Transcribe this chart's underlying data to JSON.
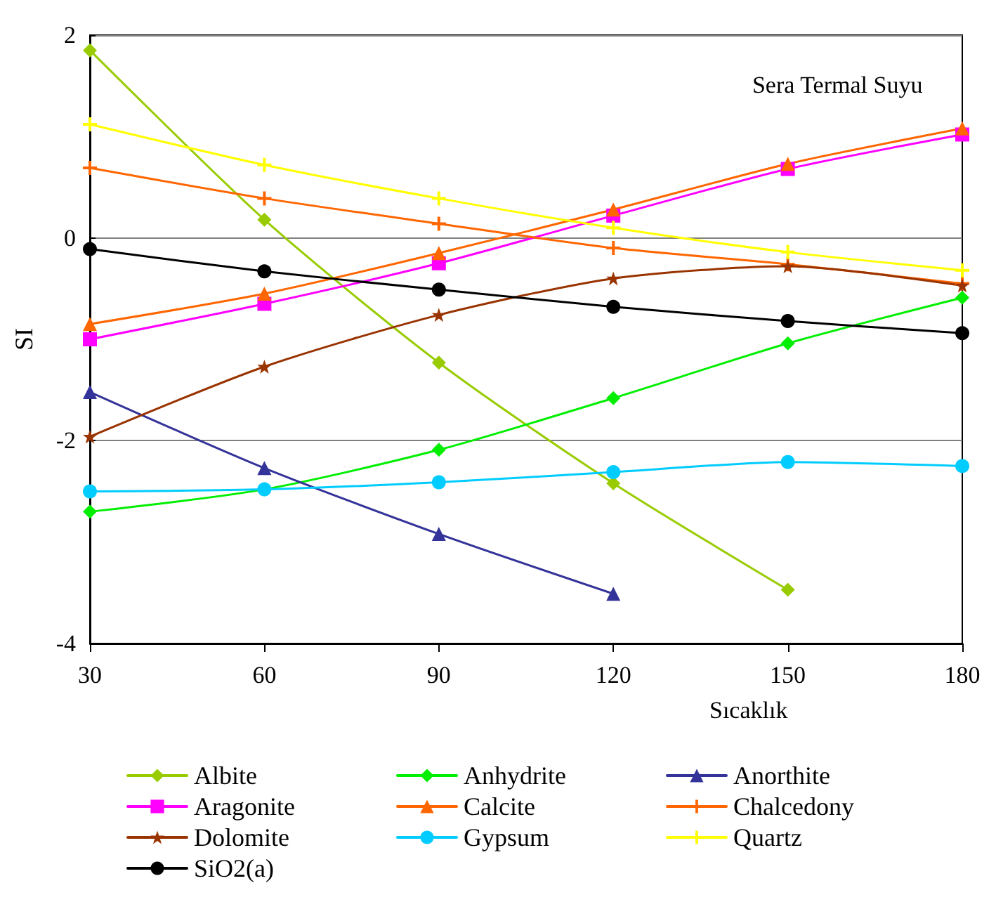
{
  "chart_data": {
    "type": "line",
    "xlabel": "Sıcaklık",
    "ylabel": "SI",
    "annotations": [
      "Sera Termal Suyu"
    ],
    "x": [
      30,
      60,
      90,
      120,
      150,
      180
    ],
    "xlim": [
      30,
      180
    ],
    "xticks": [
      30,
      60,
      90,
      120,
      150,
      180
    ],
    "ylim": [
      -4,
      2
    ],
    "yticks": [
      -4,
      -2,
      0,
      2
    ],
    "grid": "y",
    "legend": "bottom",
    "line_style": "solid",
    "series": [
      {
        "name": "Albite",
        "color": "#99cc00",
        "marker": "diamond",
        "values": [
          1.85,
          0.18,
          -1.23,
          -2.42,
          -3.47,
          null
        ]
      },
      {
        "name": "Anhydrite",
        "color": "#00ee00",
        "marker": "diamond",
        "values": [
          -2.7,
          -2.48,
          -2.09,
          -1.58,
          -1.04,
          -0.59
        ]
      },
      {
        "name": "Anorthite",
        "color": "#333399",
        "marker": "triangle",
        "values": [
          -1.52,
          -2.27,
          -2.92,
          -3.51,
          null,
          null
        ]
      },
      {
        "name": "Aragonite",
        "color": "#ff00ff",
        "marker": "square",
        "values": [
          -1.0,
          -0.65,
          -0.25,
          0.22,
          0.68,
          1.02
        ]
      },
      {
        "name": "Calcite",
        "color": "#ff6600",
        "marker": "triangle",
        "values": [
          -0.85,
          -0.55,
          -0.15,
          0.28,
          0.73,
          1.08
        ]
      },
      {
        "name": "Chalcedony",
        "color": "#ff6600",
        "marker": "cross",
        "values": [
          0.69,
          0.39,
          0.14,
          -0.1,
          -0.26,
          -0.45
        ]
      },
      {
        "name": "Dolomite",
        "color": "#993300",
        "marker": "star",
        "values": [
          -1.96,
          -1.27,
          -0.76,
          -0.4,
          -0.28,
          -0.47
        ]
      },
      {
        "name": "Gypsum",
        "color": "#00ccff",
        "marker": "circle",
        "values": [
          -2.5,
          -2.48,
          -2.41,
          -2.31,
          -2.21,
          -2.25
        ]
      },
      {
        "name": "Quartz",
        "color": "#ffff00",
        "marker": "cross",
        "values": [
          1.12,
          0.72,
          0.39,
          0.1,
          -0.14,
          -0.32
        ]
      },
      {
        "name": "SiO2(a)",
        "color": "#000000",
        "marker": "circle",
        "values": [
          -0.11,
          -0.33,
          -0.51,
          -0.68,
          -0.82,
          -0.94
        ]
      }
    ]
  }
}
